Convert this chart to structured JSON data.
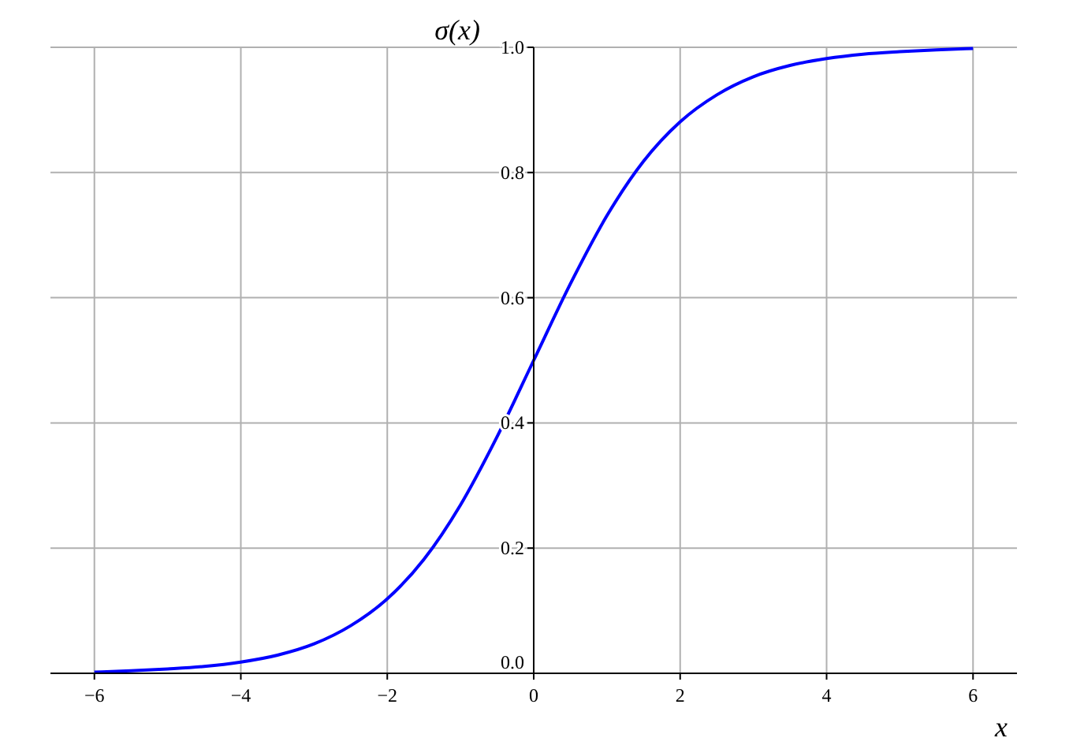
{
  "chart_data": {
    "type": "line",
    "xlabel": "x",
    "ylabel": "σ(x)",
    "x": [
      -6,
      -5.5,
      -5,
      -4.5,
      -4,
      -3.5,
      -3,
      -2.5,
      -2,
      -1.5,
      -1,
      -0.5,
      0,
      0.5,
      1,
      1.5,
      2,
      2.5,
      3,
      3.5,
      4,
      4.5,
      5,
      5.5,
      6
    ],
    "series": [
      {
        "color": "#0000ff",
        "values": [
          0.002,
          0.004,
          0.007,
          0.011,
          0.018,
          0.029,
          0.047,
          0.076,
          0.119,
          0.182,
          0.269,
          0.378,
          0.5,
          0.622,
          0.731,
          0.818,
          0.881,
          0.924,
          0.953,
          0.971,
          0.982,
          0.989,
          0.993,
          0.996,
          0.998
        ]
      }
    ],
    "xlim": [
      -6.6,
      6.6
    ],
    "ylim": [
      0,
      1
    ],
    "xticks": [
      {
        "value": -6,
        "label": "−6"
      },
      {
        "value": -4,
        "label": "−4"
      },
      {
        "value": -2,
        "label": "−2"
      },
      0,
      2,
      4,
      6
    ],
    "yticks": [
      {
        "value": 0,
        "label": "0.0"
      },
      {
        "value": 0.2,
        "label": "0.2"
      },
      {
        "value": 0.4,
        "label": "0.4"
      },
      {
        "value": 0.6,
        "label": "0.6"
      },
      {
        "value": 0.8,
        "label": "0.8"
      },
      {
        "value": 1,
        "label": "1.0"
      }
    ],
    "grid": true,
    "line_style": "solid"
  }
}
